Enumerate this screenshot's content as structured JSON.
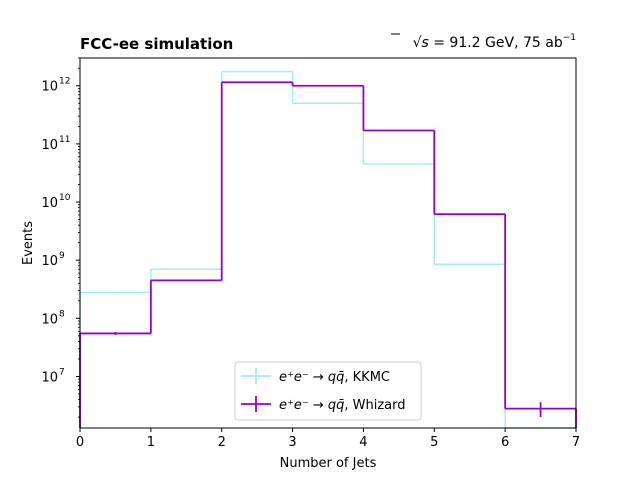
{
  "chart_data": {
    "type": "histogram",
    "title_left": "FCC-ee simulation",
    "title_right_prefix": "s",
    "title_right_suffix": " = 91.2 GeV, 75 ab",
    "title_right_exp": "−1",
    "xlabel": "Number of Jets",
    "ylabel": "Events",
    "x_scale": "linear",
    "y_scale": "log",
    "xlim": [
      0,
      7
    ],
    "ylim": [
      1300000.0,
      3000000000000.0
    ],
    "x_ticks": [
      "0",
      "1",
      "2",
      "3",
      "4",
      "5",
      "6",
      "7"
    ],
    "y_ticks": [
      {
        "value": 10000000.0,
        "base": "10",
        "exp": "7"
      },
      {
        "value": 100000000.0,
        "base": "10",
        "exp": "8"
      },
      {
        "value": 1000000000.0,
        "base": "10",
        "exp": "9"
      },
      {
        "value": 10000000000.0,
        "base": "10",
        "exp": "10"
      },
      {
        "value": 100000000000.0,
        "base": "10",
        "exp": "11"
      },
      {
        "value": 1000000000000.0,
        "base": "10",
        "exp": "12"
      }
    ],
    "bin_edges": [
      0,
      1,
      2,
      3,
      4,
      5,
      6,
      7
    ],
    "series": [
      {
        "name_math": "e⁺e⁻ → qq̄",
        "name_suffix": ", KKMC",
        "color": "#a7eef3",
        "values": [
          280000000.0,
          700000000.0,
          1750000000000.0,
          500000000000.0,
          45000000000.0,
          850000000.0,
          1000000.0
        ],
        "errors": [
          {
            "bin": 0,
            "low": 270000000.0,
            "high": 290000000.0
          }
        ]
      },
      {
        "name_math": "e⁺e⁻ → qq̄",
        "name_suffix": ", Whizard",
        "color": "#9400d3",
        "values": [
          55000000.0,
          450000000.0,
          1150000000000.0,
          1000000000000.0,
          170000000000.0,
          6200000000.0,
          2800000.0
        ],
        "errors": [
          {
            "bin": 0,
            "low": 52000000.0,
            "high": 58000000.0
          },
          {
            "bin": 6,
            "low": 2000000.0,
            "high": 3600000.0
          }
        ]
      }
    ],
    "legend": {
      "position": "lower-center"
    },
    "grid": false
  }
}
